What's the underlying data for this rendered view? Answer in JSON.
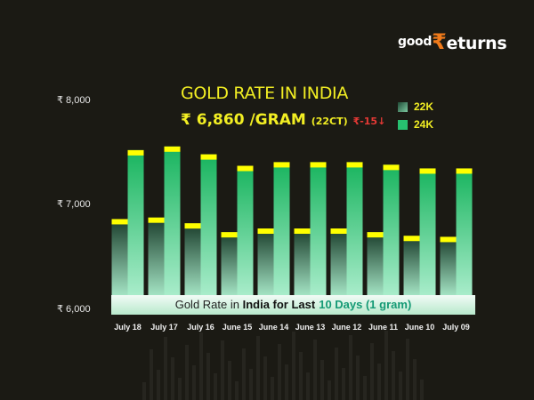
{
  "brand": {
    "logo_text_1": "good",
    "logo_symbol": "₹",
    "logo_text_2": "eturns"
  },
  "header": {
    "title": "GOLD RATE IN INDIA",
    "price": "₹ 6,860 /GRAM",
    "unit": "(22CT)",
    "change": "₹-15↓"
  },
  "chart_data": {
    "type": "bar",
    "categories": [
      "July 18",
      "July 17",
      "July 16",
      "June 15",
      "June 14",
      "June 13",
      "June 12",
      "June 11",
      "June 10",
      "July 09"
    ],
    "series": [
      {
        "name": "22K",
        "values": [
          6860,
          6875,
          6820,
          6735,
          6770,
          6770,
          6770,
          6735,
          6700,
          6690
        ]
      },
      {
        "name": "24K",
        "values": [
          7520,
          7555,
          7480,
          7370,
          7405,
          7405,
          7405,
          7380,
          7345,
          7345
        ]
      }
    ],
    "yticks": [
      "₹ 8,000",
      "₹ 7,000",
      "₹ 6,000"
    ],
    "ylim": [
      6000,
      8000
    ],
    "legend_position": "top-right",
    "grid": false,
    "colors": {
      "22K": "#1f4a35",
      "24K": "#1db760",
      "cap": "#ffff00"
    }
  },
  "banner": {
    "part1": "Gold Rate in ",
    "part2": "India for Last",
    "part3": "10 Days (1 gram)"
  }
}
